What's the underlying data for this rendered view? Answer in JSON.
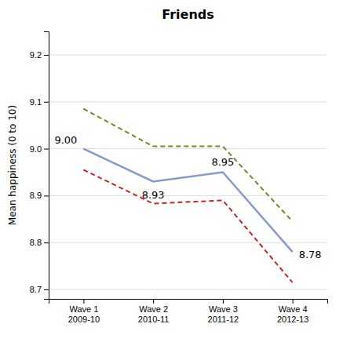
{
  "chart_data": {
    "type": "line",
    "title": "Friends",
    "ylabel": "Mean happiness (0 to 10)",
    "categories": [
      "Wave 1\n2009-10",
      "Wave 2\n2010-11",
      "Wave 3\n2011-12",
      "Wave 4\n2012-13"
    ],
    "series": [
      {
        "color": "#6b8e23",
        "line_style": "dashed",
        "values": [
          9.085,
          9.005,
          9.005,
          8.845
        ]
      },
      {
        "color": "#cc2222",
        "line_style": "dashed",
        "values": [
          8.955,
          8.883,
          8.89,
          8.715
        ]
      },
      {
        "color": "#8899cc",
        "line_style": "solid",
        "values": [
          9.0,
          8.93,
          8.95,
          8.78
        ],
        "data_labels": true,
        "value_labels": [
          "9.00",
          "8.93",
          "8.95",
          "8.78"
        ]
      }
    ],
    "ylim": [
      8.68,
      9.25
    ],
    "yticks": [
      {
        "value": 8.7,
        "label": "8.7"
      },
      {
        "value": 8.8,
        "label": "8.8"
      },
      {
        "value": 8.9,
        "label": "8.9"
      },
      {
        "value": 9.0,
        "label": "9.0"
      },
      {
        "value": 9.1,
        "label": "9.1"
      },
      {
        "value": 9.2,
        "label": "9.2"
      }
    ],
    "grid": true
  }
}
